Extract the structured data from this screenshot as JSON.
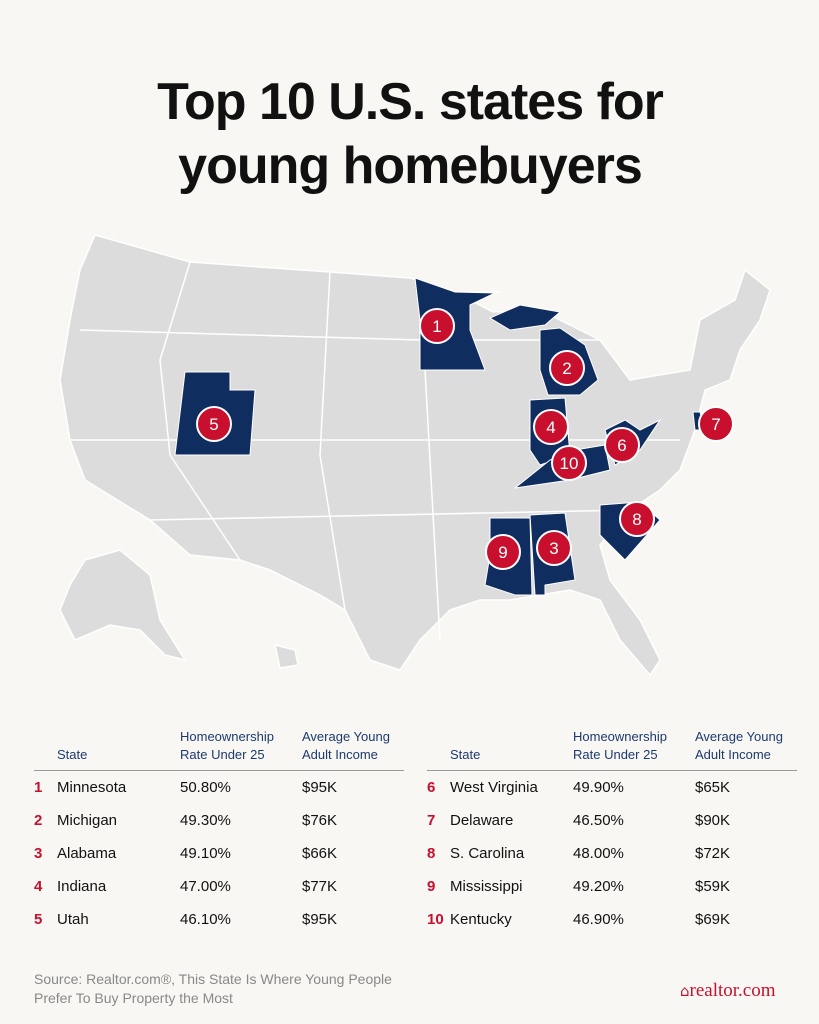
{
  "title": "Top 10 U.S. states for young homebuyers",
  "map": {
    "markers": [
      "1",
      "2",
      "3",
      "4",
      "5",
      "6",
      "7",
      "8",
      "9",
      "10"
    ]
  },
  "tables": [
    {
      "headers": [
        "State",
        "Homeownership Rate Under 25",
        "Average Young Adult Income"
      ],
      "rows": [
        [
          "1",
          "Minnesota",
          "50.80%",
          "$95K"
        ],
        [
          "2",
          "Michigan",
          "49.30%",
          "$76K"
        ],
        [
          "3",
          "Alabama",
          "49.10%",
          "$66K"
        ],
        [
          "4",
          "Indiana",
          "47.00%",
          "$77K"
        ],
        [
          "5",
          "Utah",
          "46.10%",
          "$95K"
        ]
      ]
    },
    {
      "headers": [
        "State",
        "Homeownership Rate Under 25",
        "Average Young Adult Income"
      ],
      "rows": [
        [
          "6",
          "West Virginia",
          "49.90%",
          "$65K"
        ],
        [
          "7",
          "Delaware",
          "46.50%",
          "$90K"
        ],
        [
          "8",
          "S. Carolina",
          "48.00%",
          "$72K"
        ],
        [
          "9",
          "Mississippi",
          "49.20%",
          "$59K"
        ],
        [
          "10",
          "Kentucky",
          "46.90%",
          "$69K"
        ]
      ]
    }
  ],
  "source": "Source: Realtor.com®, This State Is Where Young People Prefer To Buy Property the Most",
  "logo": "realtor.com"
}
